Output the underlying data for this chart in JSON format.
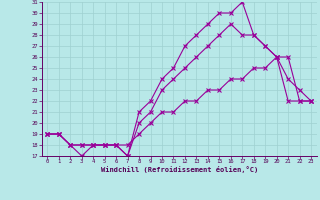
{
  "xlabel": "Windchill (Refroidissement éolien,°C)",
  "background_color": "#b8e8e8",
  "grid_color": "#9fd0d0",
  "line_color": "#990099",
  "ylim": [
    17,
    31
  ],
  "xlim": [
    -0.5,
    23.5
  ],
  "yticks": [
    17,
    18,
    19,
    20,
    21,
    22,
    23,
    24,
    25,
    26,
    27,
    28,
    29,
    30,
    31
  ],
  "xticks": [
    0,
    1,
    2,
    3,
    4,
    5,
    6,
    7,
    8,
    9,
    10,
    11,
    12,
    13,
    14,
    15,
    16,
    17,
    18,
    19,
    20,
    21,
    22,
    23
  ],
  "curve1_x": [
    0,
    1,
    2,
    3,
    4,
    5,
    6,
    7,
    8,
    9,
    10,
    11,
    12,
    13,
    14,
    15,
    16,
    17,
    18,
    19,
    20,
    21,
    22,
    23
  ],
  "curve1_y": [
    19,
    19,
    18,
    17,
    18,
    18,
    18,
    17,
    21,
    22,
    24,
    25,
    27,
    28,
    29,
    30,
    30,
    31,
    28,
    27,
    26,
    24,
    23,
    22
  ],
  "curve2_x": [
    0,
    1,
    2,
    3,
    4,
    5,
    6,
    7,
    8,
    9,
    10,
    11,
    12,
    13,
    14,
    15,
    16,
    17,
    18,
    19,
    20,
    21,
    22,
    23
  ],
  "curve2_y": [
    19,
    19,
    18,
    18,
    18,
    18,
    18,
    17,
    20,
    21,
    23,
    24,
    25,
    26,
    27,
    28,
    29,
    28,
    28,
    27,
    26,
    26,
    22,
    22
  ],
  "curve3_x": [
    0,
    1,
    2,
    3,
    4,
    5,
    6,
    7,
    8,
    9,
    10,
    11,
    12,
    13,
    14,
    15,
    16,
    17,
    18,
    19,
    20,
    21,
    22,
    23
  ],
  "curve3_y": [
    19,
    19,
    18,
    18,
    18,
    18,
    18,
    18,
    19,
    20,
    21,
    21,
    22,
    22,
    23,
    23,
    24,
    24,
    25,
    25,
    26,
    22,
    22,
    22
  ]
}
